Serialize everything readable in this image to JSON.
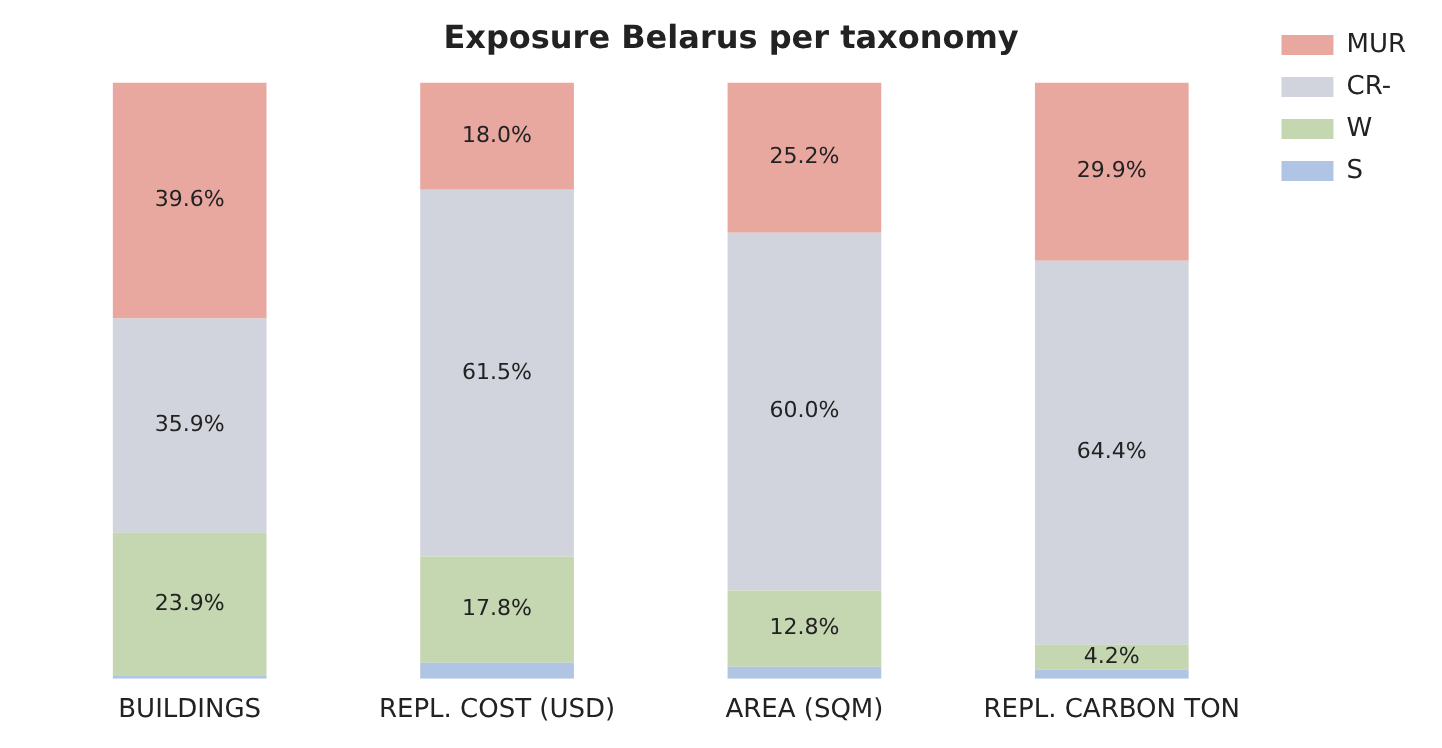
{
  "chart_data": {
    "type": "bar",
    "title": "Exposure Belarus per taxonomy",
    "categories": [
      "BUILDINGS",
      "REPL. COST (USD)",
      "AREA (SQM)",
      "REPL. CARBON TON"
    ],
    "stacked": true,
    "legend": "top right",
    "tick_labels": "x",
    "series": [
      {
        "name": "S",
        "color": "#b0c4e4",
        "values": [
          0.6,
          2.7,
          2.0,
          1.5
        ],
        "value_labels": [
          null,
          null,
          null,
          null
        ]
      },
      {
        "name": "W",
        "color": "#c4d7b0",
        "values": [
          23.9,
          17.8,
          12.8,
          4.2
        ],
        "value_labels": [
          "23.9%",
          "17.8%",
          "12.8%",
          "4.2%"
        ]
      },
      {
        "name": "CR-",
        "color": "#d1d4dc",
        "values": [
          35.9,
          61.5,
          60.0,
          64.4
        ],
        "value_labels": [
          "35.9%",
          "61.5%",
          "60.0%",
          "64.4%"
        ]
      },
      {
        "name": "MUR",
        "color": "#e8a8a0",
        "values": [
          39.6,
          18.0,
          25.2,
          29.9
        ],
        "value_labels": [
          "39.6%",
          "18.0%",
          "25.2%",
          "29.9%"
        ]
      }
    ]
  }
}
